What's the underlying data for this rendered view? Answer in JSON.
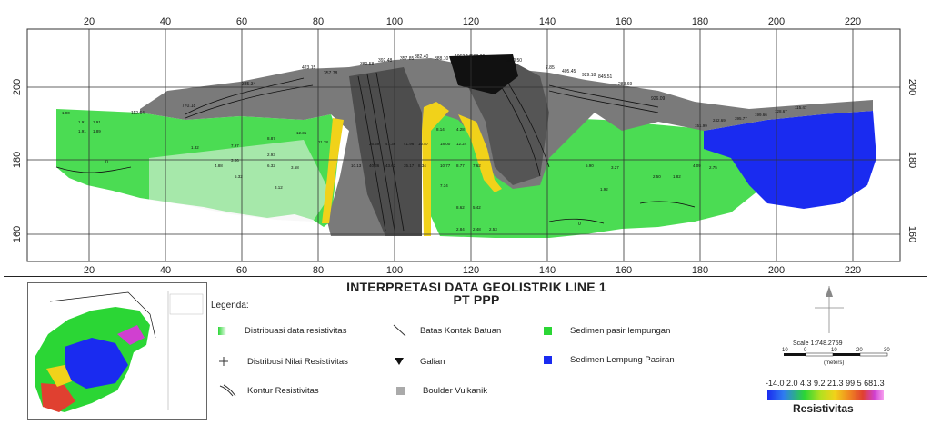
{
  "section": {
    "x_ticks": [
      "20",
      "40",
      "60",
      "80",
      "100",
      "120",
      "140",
      "160",
      "180",
      "200",
      "220"
    ],
    "y_ticks": [
      "200",
      "180",
      "160"
    ],
    "contour_labels": [
      "385.34",
      "423.15",
      "357.78",
      "380.58",
      "392.48",
      "357.85",
      "382.40",
      "388.10",
      "1062.14",
      "588.26",
      "4017.08",
      "3090.50",
      "7.85",
      "405.45",
      "929.18",
      "845.51",
      "283.69",
      "926.09",
      "112.64",
      "770.18",
      "0",
      "0"
    ],
    "cell_values": [
      "1.90",
      "1.91",
      "1.91",
      "1.91",
      "1.89",
      "1.32",
      "4.88",
      "3.06",
      "2.93",
      "3.58",
      "5.32",
      "6.32",
      "7.97",
      "8.87",
      "12.31",
      "10.13",
      "26.59",
      "40.36",
      "47.36",
      "43.62",
      "41.96",
      "35.17",
      "18.00",
      "12.24",
      "10.77",
      "8.77",
      "7.62",
      "7.34",
      "5.90",
      "3.27",
      "4.09",
      "2.75",
      "2.50",
      "1.82",
      "1.92",
      "3.12",
      "11.78",
      "10.87",
      "8.34",
      "8.14",
      "4.28",
      "8.62",
      "5.42",
      "2.84",
      "2.48",
      "2.53",
      "151.99",
      "242.69",
      "395.77",
      "199.66",
      "128.67",
      "115.47"
    ],
    "colors": {
      "green": "#2bd635",
      "blue": "#1a2bf0",
      "yellow": "#f1d21a",
      "gray": "#7a7a7a",
      "black": "#111111"
    }
  },
  "title": {
    "line1": "INTERPRETASI DATA GEOLISTRIK LINE 1",
    "line2": "PT PPP"
  },
  "legend": {
    "heading": "Legenda:",
    "items": [
      {
        "label": "Distribuasi data resistivitas",
        "icon": "green-white-swatch"
      },
      {
        "label": "Distribusi Nilai Resistivitas",
        "icon": "plus-marker-icon"
      },
      {
        "label": "Kontur Resistivitas",
        "icon": "contour-lines-icon"
      },
      {
        "label": "Batas Kontak Batuan",
        "icon": "diagonal-line-icon"
      },
      {
        "label": "Galian",
        "icon": "triangle-down-icon"
      },
      {
        "label": "Boulder Vulkanik",
        "icon": "gray-square-swatch"
      },
      {
        "label": "Sedimen pasir lempungan",
        "icon": "green-swatch"
      },
      {
        "label": "Sedimen Lempung Pasiran",
        "icon": "blue-swatch"
      }
    ]
  },
  "scale": {
    "text": "Scale 1:748.2759",
    "bar_ticks": [
      "10",
      "0",
      "10",
      "20",
      "30"
    ],
    "unit": "(meters)"
  },
  "colorbar": {
    "values": "-14.0  2.0  4.3  9.2 21.3  99.5 681.3",
    "title": "Resistivitas"
  }
}
